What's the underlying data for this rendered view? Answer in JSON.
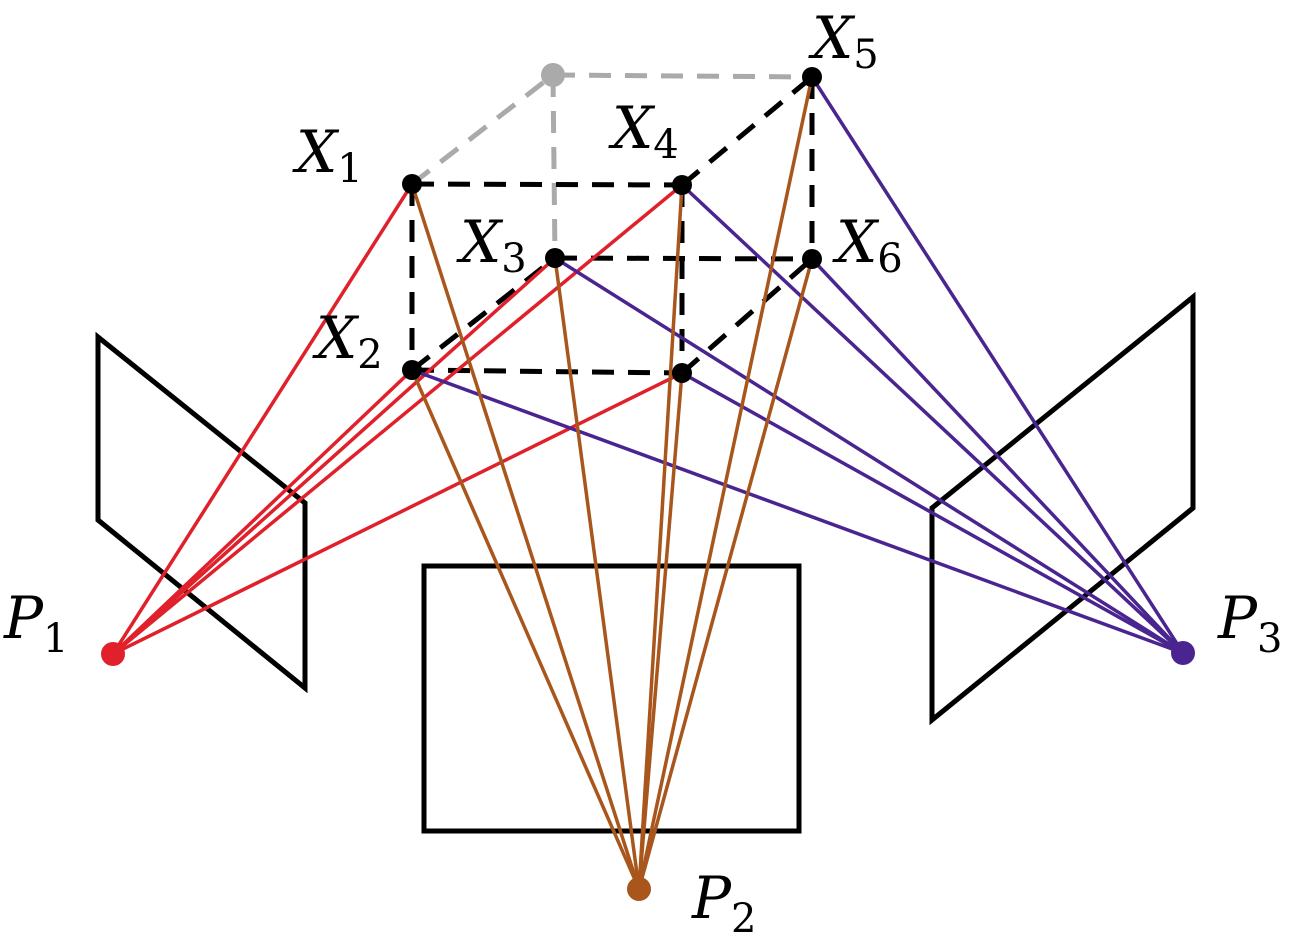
{
  "points": {
    "X1": {
      "name": "X",
      "sub": "1"
    },
    "X2": {
      "name": "X",
      "sub": "2"
    },
    "X3": {
      "name": "X",
      "sub": "3"
    },
    "X4": {
      "name": "X",
      "sub": "4"
    },
    "X5": {
      "name": "X",
      "sub": "5"
    },
    "X6": {
      "name": "X",
      "sub": "6"
    }
  },
  "cameras": {
    "P1": {
      "name": "P",
      "sub": "1",
      "color": "#e0202a"
    },
    "P2": {
      "name": "P",
      "sub": "2",
      "color": "#a8561c"
    },
    "P3": {
      "name": "P",
      "sub": "3",
      "color": "#4a2590"
    }
  },
  "hidden_vertex_color": "#aaaaaa",
  "edge_color": "#000000"
}
